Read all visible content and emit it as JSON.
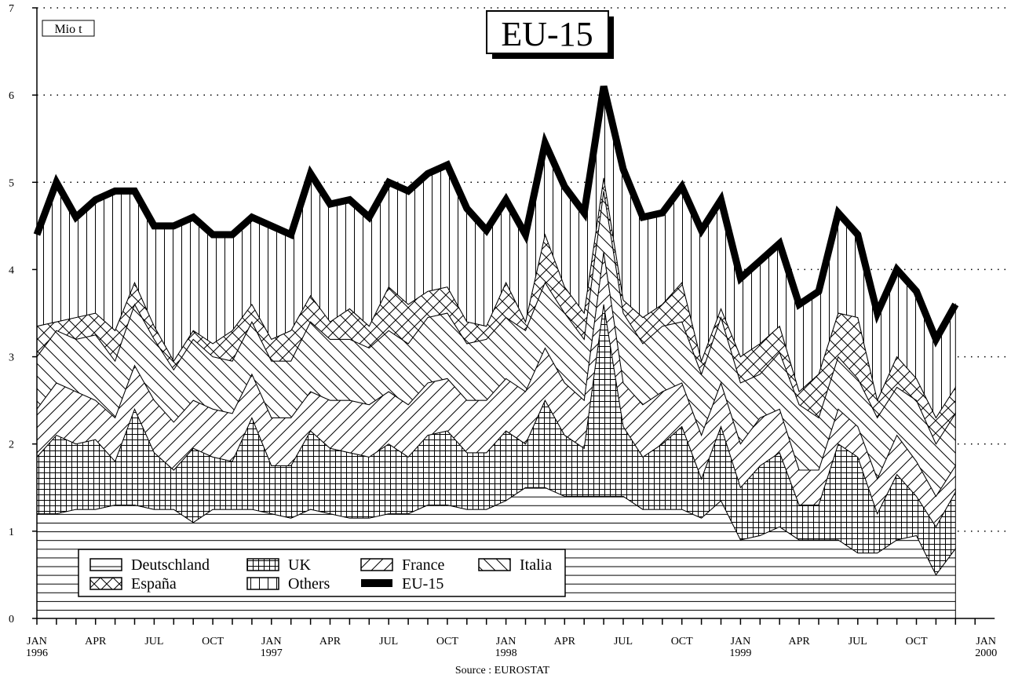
{
  "chart_data": {
    "type": "stacked_area",
    "title": "EU-15",
    "y_unit_label": "Mio t",
    "source": "Source : EUROSTAT",
    "categories": [
      "JAN",
      null,
      null,
      "APR",
      null,
      null,
      "JUL",
      null,
      null,
      "OCT",
      null,
      null,
      "JAN",
      null,
      null,
      "APR",
      null,
      null,
      "JUL",
      null,
      null,
      "OCT",
      null,
      null,
      "JAN",
      null,
      null,
      "APR",
      null,
      null,
      "JUL",
      null,
      null,
      "OCT",
      null,
      null,
      "JAN",
      null,
      null,
      "APR",
      null,
      null,
      "JUL",
      null,
      null,
      "OCT",
      null,
      null
    ],
    "years": [
      "1996",
      "1997",
      "1998",
      "1999"
    ],
    "x_axis_end": {
      "month": "JAN",
      "year": "2000"
    },
    "ylim": [
      0,
      7
    ],
    "yticks": [
      0,
      1,
      2,
      3,
      4,
      5,
      6,
      7
    ],
    "grid": true,
    "legend": "bottom-left",
    "series": [
      {
        "name": "Deutschland",
        "type": "area",
        "pattern": "horizontal",
        "color": "#000000",
        "values": [
          1.2,
          1.2,
          1.25,
          1.25,
          1.3,
          1.3,
          1.25,
          1.25,
          1.1,
          1.25,
          1.25,
          1.25,
          1.2,
          1.15,
          1.25,
          1.2,
          1.15,
          1.15,
          1.2,
          1.2,
          1.3,
          1.3,
          1.25,
          1.25,
          1.35,
          1.5,
          1.5,
          1.4,
          1.4,
          1.4,
          1.4,
          1.25,
          1.25,
          1.25,
          1.15,
          1.35,
          0.9,
          0.95,
          1.05,
          0.9,
          0.9,
          0.9,
          0.75,
          0.75,
          0.9,
          0.95,
          0.5,
          0.8
        ]
      },
      {
        "name": "UK",
        "type": "area",
        "pattern": "grid",
        "color": "#000000",
        "values": [
          0.65,
          0.9,
          0.75,
          0.8,
          0.5,
          1.1,
          0.65,
          0.45,
          0.85,
          0.6,
          0.55,
          1.05,
          0.55,
          0.6,
          0.9,
          0.75,
          0.75,
          0.7,
          0.8,
          0.65,
          0.8,
          0.85,
          0.65,
          0.65,
          0.8,
          0.5,
          1.0,
          0.7,
          0.55,
          2.2,
          0.8,
          0.6,
          0.75,
          0.95,
          0.45,
          0.85,
          0.6,
          0.8,
          0.85,
          0.4,
          0.4,
          1.1,
          1.1,
          0.45,
          0.75,
          0.45,
          0.55,
          0.65
        ]
      },
      {
        "name": "France",
        "type": "area",
        "pattern": "diagonal-up",
        "color": "#000000",
        "values": [
          0.55,
          0.6,
          0.6,
          0.45,
          0.5,
          0.5,
          0.6,
          0.55,
          0.55,
          0.55,
          0.55,
          0.5,
          0.55,
          0.55,
          0.45,
          0.55,
          0.6,
          0.6,
          0.6,
          0.6,
          0.6,
          0.6,
          0.6,
          0.6,
          0.6,
          0.6,
          0.6,
          0.6,
          0.55,
          0.6,
          0.5,
          0.6,
          0.6,
          0.5,
          0.5,
          0.5,
          0.5,
          0.55,
          0.5,
          0.4,
          0.4,
          0.4,
          0.35,
          0.4,
          0.45,
          0.4,
          0.35,
          0.3
        ]
      },
      {
        "name": "Italia",
        "type": "area",
        "pattern": "diagonal-down",
        "color": "#000000",
        "values": [
          0.6,
          0.6,
          0.6,
          0.75,
          0.65,
          0.7,
          0.7,
          0.6,
          0.7,
          0.6,
          0.6,
          0.6,
          0.65,
          0.65,
          0.8,
          0.7,
          0.7,
          0.65,
          0.7,
          0.7,
          0.75,
          0.75,
          0.65,
          0.7,
          0.7,
          0.7,
          0.75,
          0.8,
          0.7,
          0.7,
          0.8,
          0.7,
          0.75,
          0.7,
          0.7,
          0.75,
          0.7,
          0.5,
          0.65,
          0.75,
          0.6,
          0.6,
          0.55,
          0.7,
          0.55,
          0.7,
          0.6,
          0.6
        ]
      },
      {
        "name": "España",
        "type": "area",
        "pattern": "crosshatch",
        "color": "#000000",
        "values": [
          0.35,
          0.1,
          0.25,
          0.25,
          0.35,
          0.25,
          0.15,
          0.1,
          0.1,
          0.15,
          0.35,
          0.2,
          0.25,
          0.35,
          0.3,
          0.2,
          0.35,
          0.25,
          0.5,
          0.45,
          0.3,
          0.3,
          0.25,
          0.15,
          0.4,
          0.1,
          0.55,
          0.3,
          0.3,
          0.15,
          0.15,
          0.3,
          0.25,
          0.45,
          0.15,
          0.1,
          0.3,
          0.35,
          0.3,
          0.15,
          0.5,
          0.5,
          0.7,
          0.2,
          0.35,
          0.25,
          0.3,
          0.3
        ]
      },
      {
        "name": "Others",
        "type": "area",
        "pattern": "vertical",
        "color": "#000000",
        "values": [
          1.05,
          1.6,
          1.15,
          1.3,
          1.6,
          1.05,
          1.15,
          1.55,
          1.3,
          1.25,
          1.1,
          1.0,
          1.3,
          1.1,
          1.4,
          1.35,
          1.25,
          1.25,
          1.2,
          1.3,
          1.35,
          1.4,
          1.3,
          1.1,
          0.95,
          1.0,
          1.05,
          1.15,
          1.15,
          1.05,
          1.5,
          1.15,
          1.05,
          1.1,
          1.5,
          1.25,
          0.9,
          0.95,
          0.95,
          1.0,
          0.95,
          1.15,
          0.95,
          1.0,
          1.0,
          1.0,
          0.9,
          0.95
        ]
      },
      {
        "name": "EU-15",
        "type": "line",
        "pattern": "solid",
        "color": "#000000",
        "values": [
          4.4,
          5.0,
          4.6,
          4.8,
          4.9,
          4.9,
          4.5,
          4.5,
          4.6,
          4.4,
          4.4,
          4.6,
          4.5,
          4.4,
          5.1,
          4.75,
          4.8,
          4.6,
          5.0,
          4.9,
          5.1,
          5.2,
          4.7,
          4.45,
          4.8,
          4.4,
          5.45,
          4.95,
          4.65,
          6.1,
          5.15,
          4.6,
          4.65,
          4.95,
          4.45,
          4.8,
          3.9,
          4.1,
          4.3,
          3.6,
          3.75,
          4.65,
          4.4,
          3.5,
          4.0,
          3.75,
          3.2,
          3.6
        ]
      }
    ]
  }
}
